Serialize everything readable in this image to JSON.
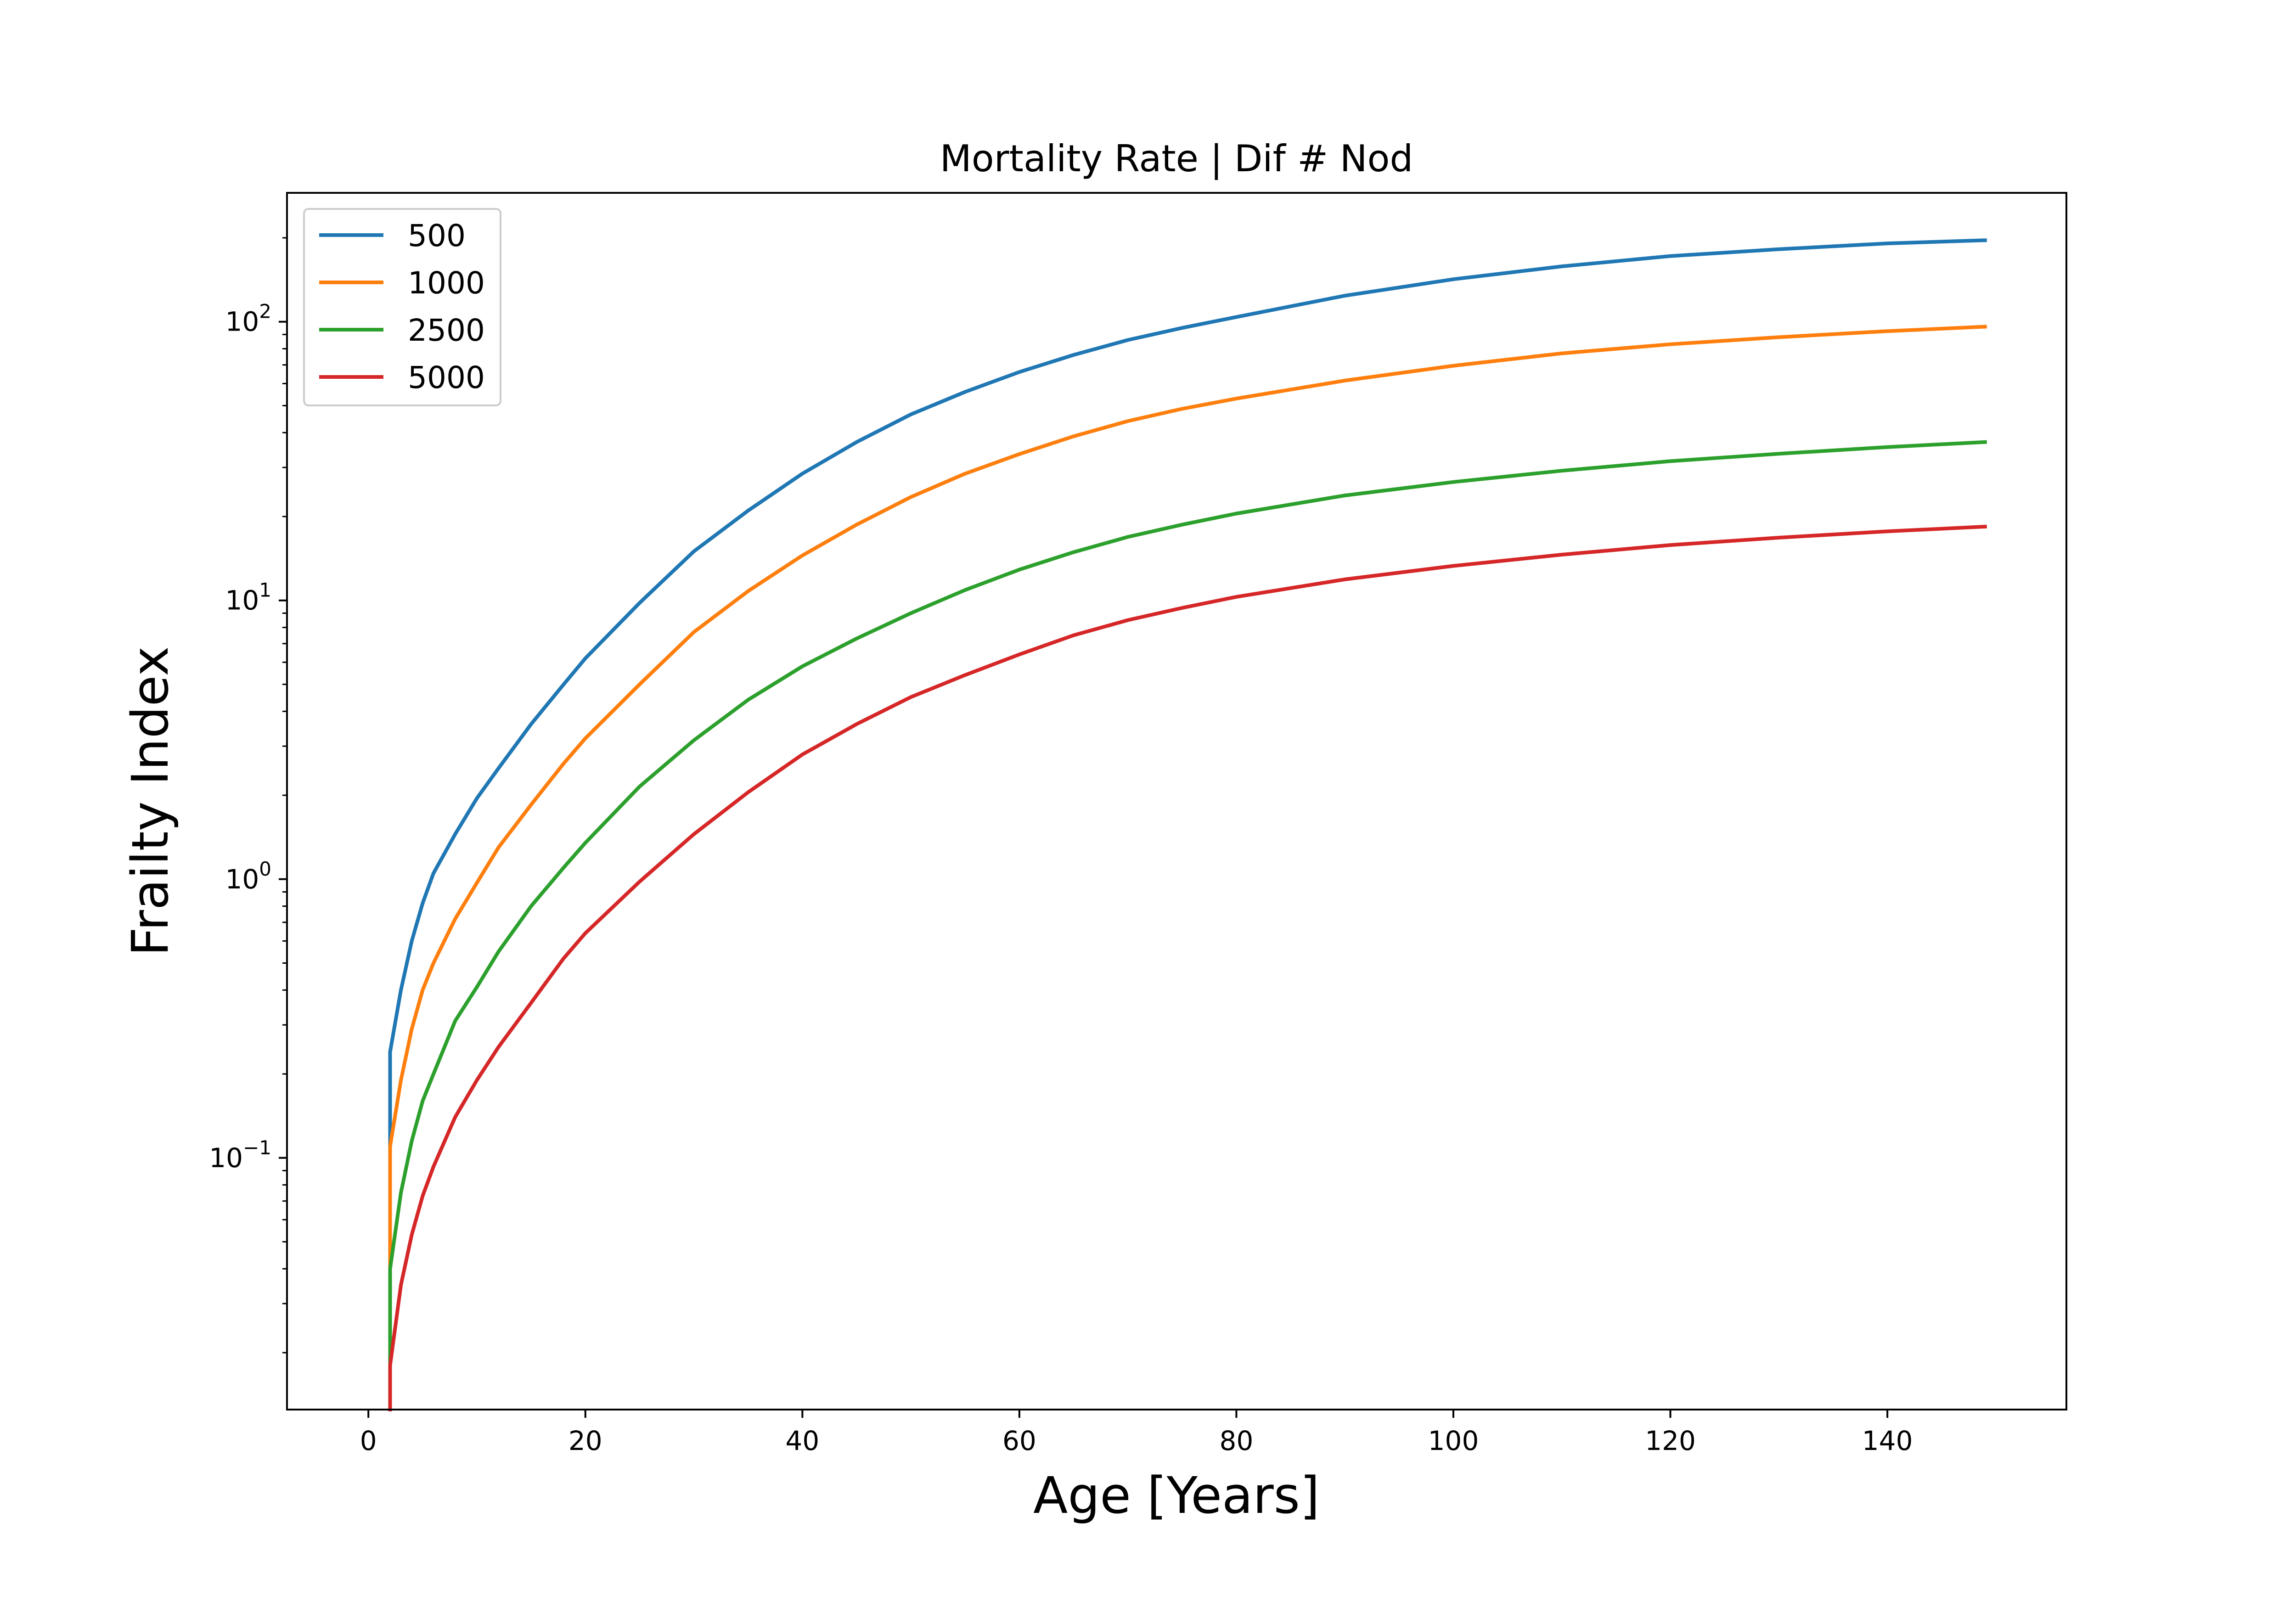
{
  "chart_data": {
    "type": "line",
    "title": "Mortality Rate | Dif # Nod",
    "xlabel": "Age [Years]",
    "ylabel": "Frailty Index",
    "xlim": [
      -7.5,
      156.5
    ],
    "ylim": [
      0.0125,
      290
    ],
    "y_scale": "log",
    "grid": false,
    "legend_position": "top-left",
    "x_ticks": [
      0,
      20,
      40,
      60,
      80,
      100,
      120,
      140
    ],
    "y_ticks": [
      {
        "value": 0.1,
        "base": "10",
        "exp": "−1"
      },
      {
        "value": 1,
        "base": "10",
        "exp": "0"
      },
      {
        "value": 10,
        "base": "10",
        "exp": "1"
      },
      {
        "value": 100,
        "base": "10",
        "exp": "2"
      }
    ],
    "x": [
      2,
      3,
      4,
      5,
      6,
      8,
      10,
      12,
      15,
      18,
      20,
      25,
      30,
      35,
      40,
      45,
      50,
      55,
      60,
      65,
      70,
      75,
      80,
      90,
      100,
      110,
      120,
      130,
      140,
      149
    ],
    "series": [
      {
        "name": "500",
        "color": "#1f77b4",
        "values": [
          0.24,
          0.4,
          0.6,
          0.82,
          1.05,
          1.45,
          1.95,
          2.5,
          3.6,
          5.0,
          6.2,
          9.8,
          15.0,
          21.0,
          28.5,
          37.0,
          46.5,
          56.0,
          66.0,
          76.0,
          86.0,
          95.0,
          104.0,
          124.0,
          142.0,
          158.0,
          172.0,
          182.0,
          191.0,
          196.0
        ]
      },
      {
        "name": "1000",
        "color": "#ff7f0e",
        "values": [
          0.11,
          0.19,
          0.29,
          0.4,
          0.5,
          0.72,
          0.97,
          1.3,
          1.85,
          2.6,
          3.2,
          5.0,
          7.7,
          10.8,
          14.5,
          18.7,
          23.5,
          28.5,
          33.5,
          38.8,
          44.0,
          48.7,
          53.0,
          61.5,
          69.5,
          77.0,
          83.0,
          88.0,
          92.5,
          96.0
        ]
      },
      {
        "name": "2500",
        "color": "#2ca02c",
        "values": [
          0.04,
          0.075,
          0.115,
          0.16,
          0.2,
          0.31,
          0.41,
          0.55,
          0.8,
          1.1,
          1.35,
          2.15,
          3.15,
          4.4,
          5.8,
          7.3,
          9.0,
          10.9,
          12.9,
          14.9,
          16.9,
          18.7,
          20.5,
          23.8,
          26.6,
          29.2,
          31.6,
          33.6,
          35.5,
          37.0
        ]
      },
      {
        "name": "5000",
        "color": "#d62728",
        "values": [
          0.018,
          0.035,
          0.053,
          0.073,
          0.093,
          0.14,
          0.19,
          0.25,
          0.36,
          0.52,
          0.64,
          0.98,
          1.45,
          2.05,
          2.8,
          3.6,
          4.5,
          5.4,
          6.4,
          7.5,
          8.5,
          9.4,
          10.3,
          11.9,
          13.3,
          14.6,
          15.8,
          16.8,
          17.7,
          18.4
        ]
      }
    ]
  }
}
